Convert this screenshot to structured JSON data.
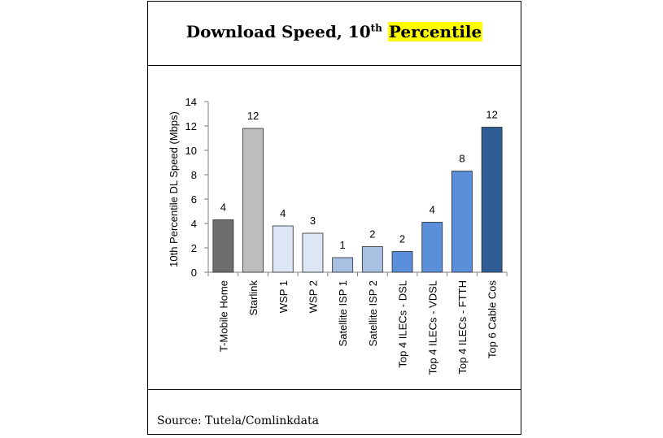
{
  "header": {
    "title_main": "Download Speed, 10",
    "title_sup": "th",
    "title_highlight": "Percentile",
    "highlight_color": "#ffff00"
  },
  "footer": {
    "source": "Source: Tutela/Comlinkdata"
  },
  "chart_data": {
    "type": "bar",
    "title": "Download Speed, 10th Percentile",
    "xlabel": "",
    "ylabel": "10th Percentile DL Speed (Mbps)",
    "ylim": [
      0,
      14
    ],
    "yticks": [
      0,
      2,
      4,
      6,
      8,
      10,
      12,
      14
    ],
    "grid": false,
    "categories": [
      "T-Mobile Home",
      "Starlink",
      "WSP 1",
      "WSP 2",
      "Satellite ISP 1",
      "Satellite ISP 2",
      "Top 4 ILECs - DSL",
      "Top 4 ILECs - VDSL",
      "Top 4 ILECs - FTTH",
      "Top 6 Cable Cos"
    ],
    "values": [
      4.3,
      11.8,
      3.8,
      3.2,
      1.2,
      2.1,
      1.7,
      4.1,
      8.3,
      11.9
    ],
    "data_labels": [
      "4",
      "12",
      "4",
      "3",
      "1",
      "2",
      "2",
      "4",
      "8",
      "12"
    ],
    "colors": [
      "#6e6e6e",
      "#bdbdbd",
      "#dce6f4",
      "#dce6f4",
      "#a9c0e3",
      "#a9c0e3",
      "#5b8fd9",
      "#5b8fd9",
      "#5b8fd9",
      "#2e5d96"
    ]
  }
}
